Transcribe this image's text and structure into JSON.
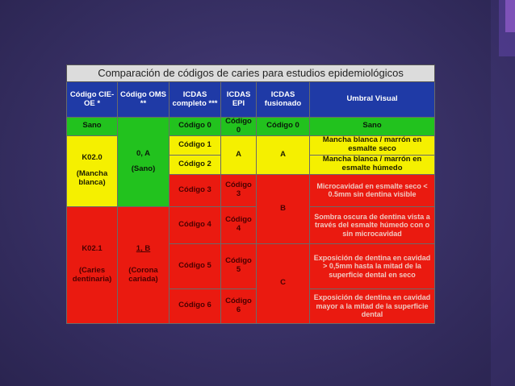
{
  "title": "Comparación de códigos de caries para estudios epidemiológicos",
  "headers": [
    "Código CIE-OE *",
    "Código OMS **",
    "ICDAS completo ***",
    "ICDAS EPI",
    "ICDAS fusionado",
    "Umbral Visual"
  ],
  "rows": {
    "sano": {
      "cie": "Sano",
      "icdas": "Código 0",
      "epi": "Código 0",
      "fus": "Código 0",
      "umbral": "Sano"
    },
    "oms_a": {
      "code": "0, A",
      "desc": "(Sano)"
    },
    "k020": {
      "code": "K02.0",
      "desc": "(Mancha blanca)"
    },
    "c1": {
      "icdas": "Código 1",
      "umbral": "Mancha blanca / marrón en esmalte seco"
    },
    "c2": {
      "icdas": "Código 2",
      "umbral": "Mancha blanca / marrón en esmalte húmedo"
    },
    "epi_a": "A",
    "fus_a": "A",
    "c3": {
      "icdas": "Código 3",
      "epi": "Código 3",
      "umbral": "Microcavidad en esmalte seco < 0.5mm sin dentina visible"
    },
    "fus_b": "B",
    "k021": {
      "code": "K02.1",
      "desc": "(Caries dentinaria)"
    },
    "oms_b": {
      "code": "1, B",
      "desc": "(Corona cariada)"
    },
    "c4": {
      "icdas": "Código 4",
      "epi": "Código 4",
      "umbral": "Sombra oscura de dentina vista a través del esmalte húmedo con o sin microcavidad"
    },
    "c5": {
      "icdas": "Código 5",
      "epi": "Código 5",
      "umbral": "Exposición de dentina en cavidad > 0,5mm hasta la mitad de la superficie dental en seco"
    },
    "fus_c": "C",
    "c6": {
      "icdas": "Código 6",
      "epi": "Código 6",
      "umbral": "Exposición de dentina en cavidad mayor a la mitad de la superficie dental"
    }
  },
  "colors": {
    "header_bg": "#1f3aa6",
    "green": "#22c21e",
    "yellow": "#f5f000",
    "red": "#ea1a10",
    "background": "#3a3268"
  }
}
